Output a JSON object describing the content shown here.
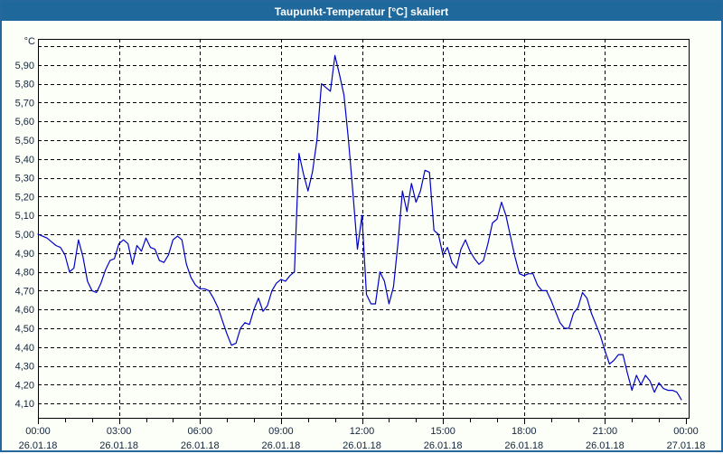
{
  "window": {
    "title": "Taupunkt-Temperatur [°C] skaliert"
  },
  "colors": {
    "titlebar_bg": "#1E689C",
    "titlebar_text": "#FFFFFF",
    "window_border": "#25689E",
    "window_bg": "#FCFFF8",
    "grid": "#000000",
    "axis_box": "#000000",
    "tick_label": "#14243C",
    "series_line": "#0000C8"
  },
  "chart_data": {
    "type": "line",
    "title": "Taupunkt-Temperatur [°C] skaliert",
    "ylabel": "°C",
    "grid": "dashed",
    "legend": "none",
    "ylim": [
      4.02,
      6.04
    ],
    "x_range_hours": [
      0,
      24
    ],
    "minor_tick_every_hours": 1,
    "y_ticks": [
      {
        "v": 6.0,
        "label": ""
      },
      {
        "v": 5.9,
        "label": "5,90"
      },
      {
        "v": 5.8,
        "label": "5,80"
      },
      {
        "v": 5.7,
        "label": "5,70"
      },
      {
        "v": 5.6,
        "label": "5,60"
      },
      {
        "v": 5.5,
        "label": "5,50"
      },
      {
        "v": 5.4,
        "label": "5,40"
      },
      {
        "v": 5.3,
        "label": "5,30"
      },
      {
        "v": 5.2,
        "label": "5,20"
      },
      {
        "v": 5.1,
        "label": "5,10"
      },
      {
        "v": 5.0,
        "label": "5,00"
      },
      {
        "v": 4.9,
        "label": "4,90"
      },
      {
        "v": 4.8,
        "label": "4,80"
      },
      {
        "v": 4.7,
        "label": "4,70"
      },
      {
        "v": 4.6,
        "label": "4,60"
      },
      {
        "v": 4.5,
        "label": "4,50"
      },
      {
        "v": 4.4,
        "label": "4,40"
      },
      {
        "v": 4.3,
        "label": "4,30"
      },
      {
        "v": 4.2,
        "label": "4,20"
      },
      {
        "v": 4.1,
        "label": "4,10"
      }
    ],
    "x_ticks": [
      {
        "h": 0,
        "time": "00:00",
        "date": "26.01.18"
      },
      {
        "h": 3,
        "time": "03:00",
        "date": "26.01.18"
      },
      {
        "h": 6,
        "time": "06:00",
        "date": "26.01.18"
      },
      {
        "h": 9,
        "time": "09:00",
        "date": "26.01.18"
      },
      {
        "h": 12,
        "time": "12:00",
        "date": "26.01.18"
      },
      {
        "h": 15,
        "time": "15:00",
        "date": "26.01.18"
      },
      {
        "h": 18,
        "time": "18:00",
        "date": "26.01.18"
      },
      {
        "h": 21,
        "time": "21:00",
        "date": "26.01.18"
      },
      {
        "h": 24,
        "time": "00:00",
        "date": "27.01.18"
      }
    ],
    "series": [
      {
        "name": "Taupunkt-Temperatur",
        "unit": "°C",
        "color": "#0000C8",
        "start_min": 0,
        "step_min": 10,
        "values": [
          5.0,
          4.99,
          4.98,
          4.96,
          4.94,
          4.93,
          4.89,
          4.8,
          4.82,
          4.97,
          4.88,
          4.75,
          4.7,
          4.69,
          4.74,
          4.81,
          4.86,
          4.87,
          4.95,
          4.97,
          4.95,
          4.84,
          4.94,
          4.91,
          4.98,
          4.93,
          4.92,
          4.86,
          4.85,
          4.89,
          4.97,
          4.99,
          4.97,
          4.84,
          4.77,
          4.73,
          4.71,
          4.71,
          4.7,
          4.66,
          4.61,
          4.54,
          4.47,
          4.41,
          4.42,
          4.5,
          4.53,
          4.52,
          4.6,
          4.66,
          4.59,
          4.62,
          4.7,
          4.74,
          4.76,
          4.75,
          4.78,
          4.8,
          5.43,
          5.32,
          5.23,
          5.33,
          5.5,
          5.8,
          5.78,
          5.76,
          5.95,
          5.85,
          5.74,
          5.5,
          5.22,
          4.92,
          5.1,
          4.68,
          4.63,
          4.63,
          4.8,
          4.75,
          4.63,
          4.72,
          4.95,
          5.23,
          5.12,
          5.27,
          5.17,
          5.23,
          5.34,
          5.33,
          5.02,
          5.0,
          4.89,
          4.93,
          4.85,
          4.82,
          4.92,
          4.97,
          4.91,
          4.87,
          4.84,
          4.86,
          4.95,
          5.06,
          5.08,
          5.17,
          5.1,
          4.99,
          4.88,
          4.79,
          4.78,
          4.79,
          4.79,
          4.73,
          4.7,
          4.7,
          4.65,
          4.59,
          4.53,
          4.5,
          4.5,
          4.58,
          4.61,
          4.69,
          4.66,
          4.58,
          4.52,
          4.46,
          4.38,
          4.31,
          4.33,
          4.36,
          4.36,
          4.26,
          4.17,
          4.25,
          4.2,
          4.25,
          4.22,
          4.16,
          4.21,
          4.18,
          4.17,
          4.17,
          4.16,
          4.12
        ]
      }
    ]
  }
}
